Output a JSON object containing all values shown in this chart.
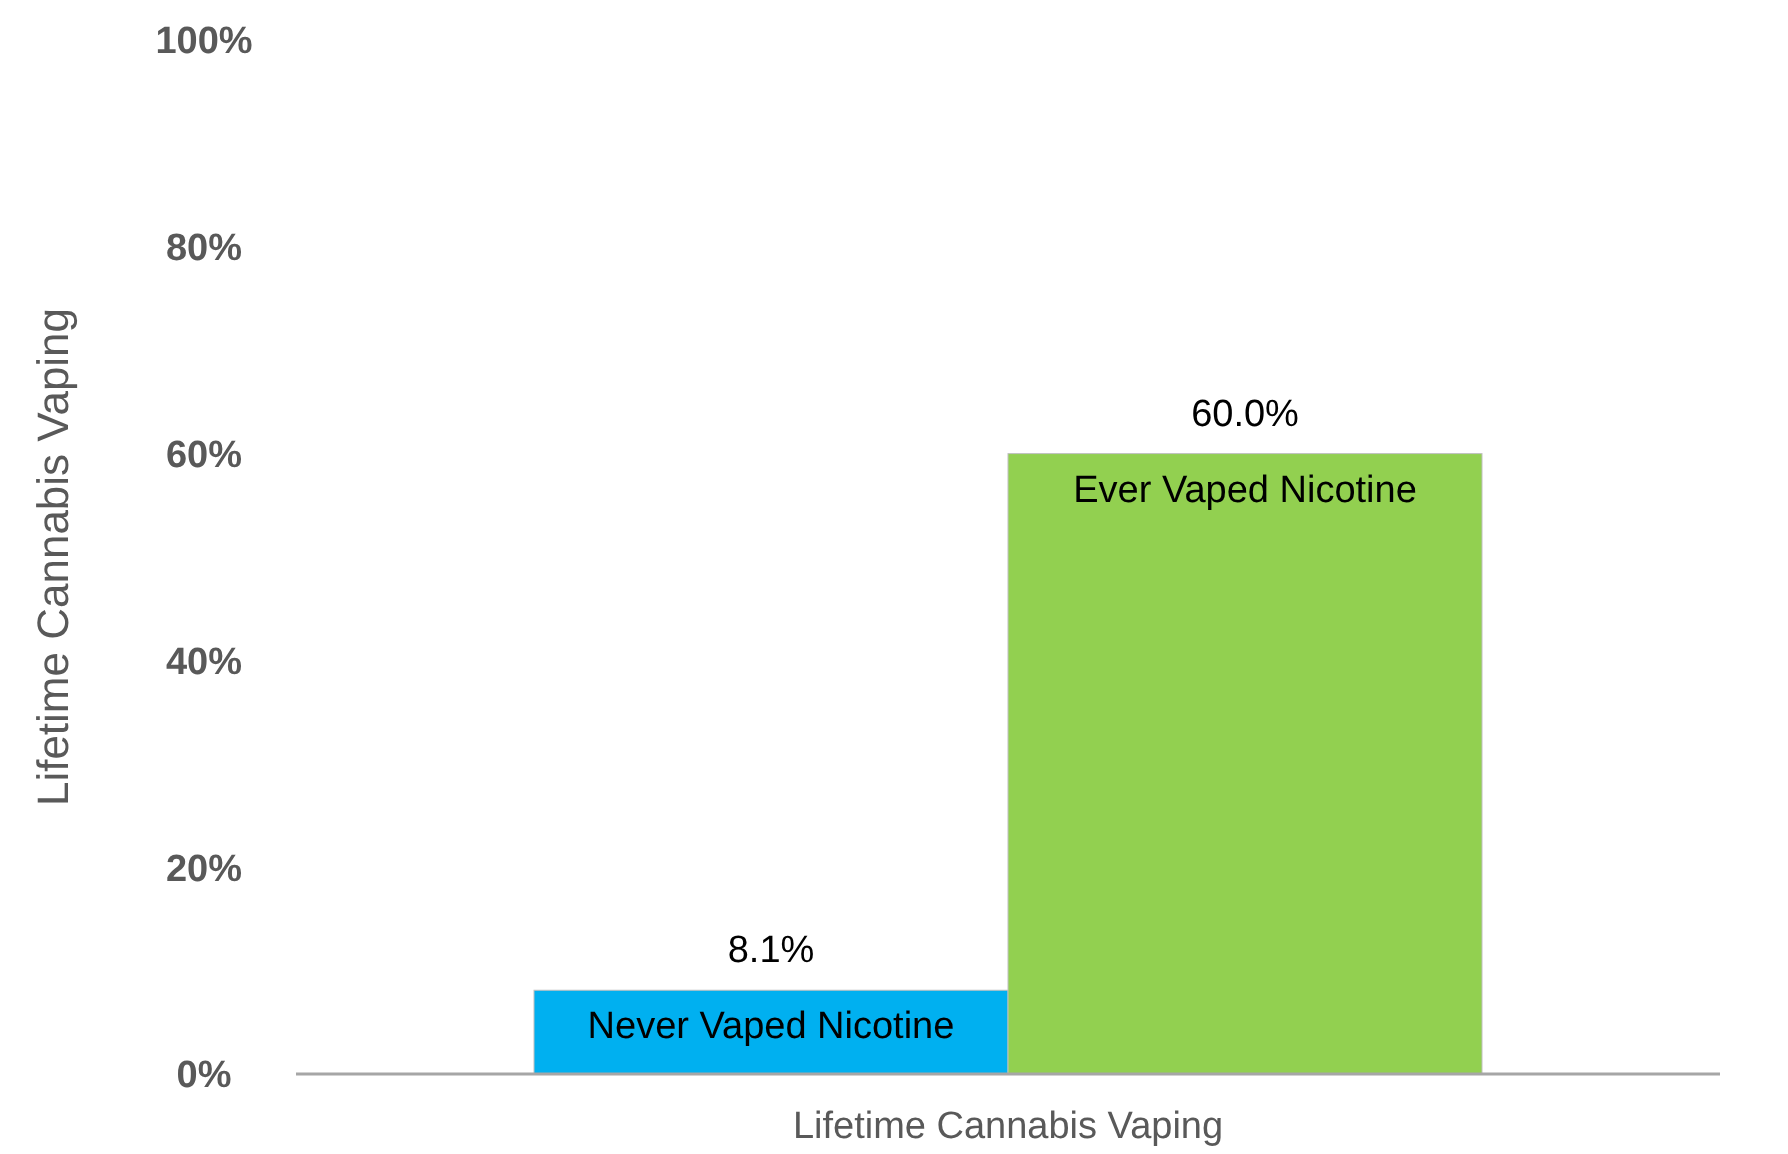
{
  "chart_data": {
    "type": "bar",
    "ylabel": "Lifetime Cannabis Vaping",
    "xlabel": "Lifetime Cannabis Vaping",
    "categories": [
      "Never Vaped Nicotine",
      "Ever Vaped Nicotine"
    ],
    "values": [
      8.1,
      60.0
    ],
    "colors": [
      "#00b0f0",
      "#92d050"
    ],
    "value_labels": [
      "8.1%",
      "60.0%"
    ],
    "ylim": [
      0,
      100
    ],
    "yticks": [
      {
        "value": 0,
        "label": "0%"
      },
      {
        "value": 20,
        "label": "20%"
      },
      {
        "value": 40,
        "label": "40%"
      },
      {
        "value": 60,
        "label": "60%"
      },
      {
        "value": 80,
        "label": "80%"
      },
      {
        "value": 100,
        "label": "100%"
      }
    ],
    "grid": false
  }
}
